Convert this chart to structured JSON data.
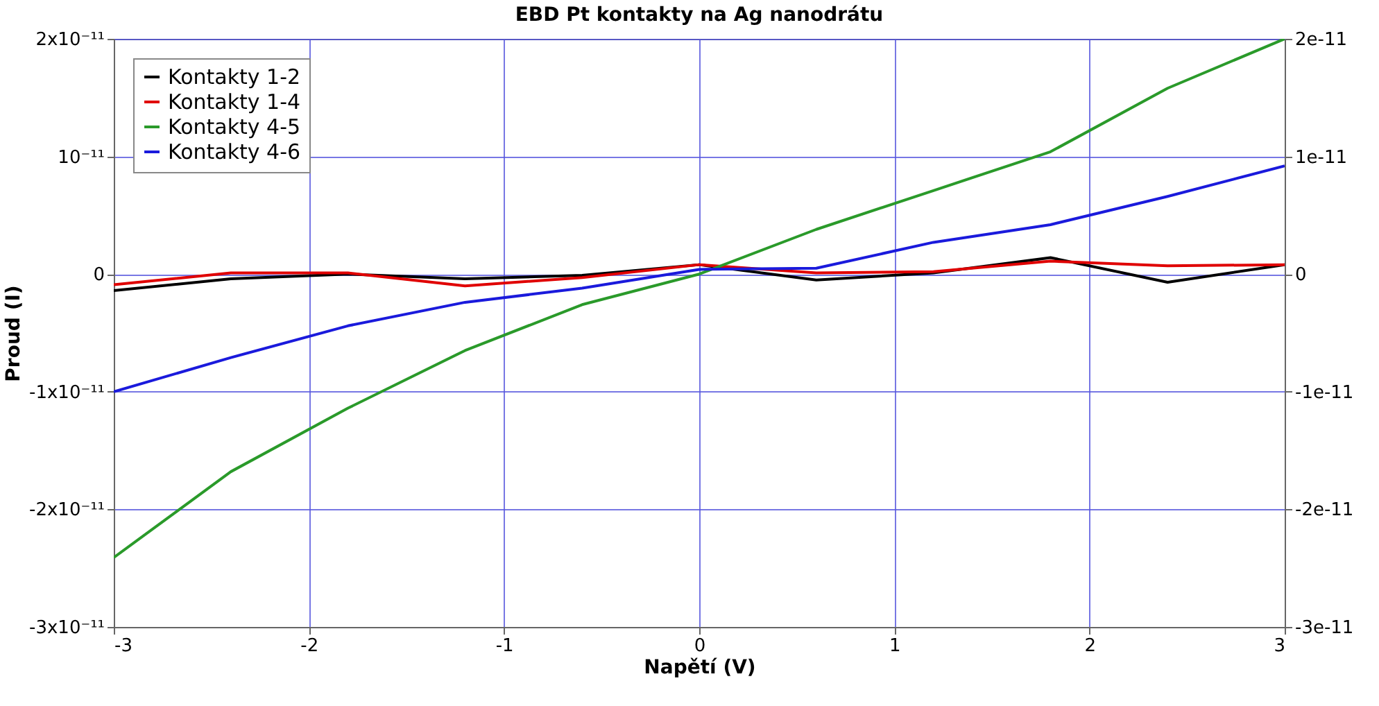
{
  "chart_data": {
    "type": "line",
    "title": "EBD Pt kontakty na Ag nanodrátu",
    "xlabel": "Napětí (V)",
    "ylabel": "Proud (I)",
    "x": [
      -3,
      -2.4,
      -1.8,
      -1.2,
      -0.6,
      0,
      0.6,
      1.2,
      1.8,
      2.4,
      3
    ],
    "series": [
      {
        "name": "Kontakty 1-2",
        "color": "#000000",
        "values": [
          -1.4e-12,
          -4e-13,
          0,
          -4e-13,
          -1e-13,
          8e-13,
          -5e-13,
          1e-13,
          1.4e-12,
          -7e-13,
          8e-13
        ]
      },
      {
        "name": "Kontakty 1-4",
        "color": "#e00000",
        "values": [
          -9e-13,
          1e-13,
          1e-13,
          -1e-12,
          -3e-13,
          8e-13,
          1e-13,
          2e-13,
          1.1e-12,
          7e-13,
          8e-13
        ]
      },
      {
        "name": "Kontakty 4-5",
        "color": "#2a9a2a",
        "values": [
          -2.41e-11,
          -1.68e-11,
          -1.14e-11,
          -6.5e-12,
          -2.6e-12,
          0,
          3.8e-12,
          7.1e-12,
          1.04e-11,
          1.58e-11,
          2e-11
        ]
      },
      {
        "name": "Kontakty 4-6",
        "color": "#1a1adc",
        "values": [
          -1e-11,
          -7.1e-12,
          -4.4e-12,
          -2.4e-12,
          -1.2e-12,
          4e-13,
          5e-13,
          2.7e-12,
          4.2e-12,
          6.6e-12,
          9.2e-12
        ]
      }
    ],
    "xlim": [
      -3,
      3
    ],
    "xticks": [
      -3,
      -2,
      -1,
      0,
      1,
      2,
      3
    ],
    "ylim": [
      -3e-11,
      2e-11
    ],
    "yticks": [
      {
        "value": -3e-11,
        "label": "-3x10⁻¹¹"
      },
      {
        "value": -2e-11,
        "label": "-2x10⁻¹¹"
      },
      {
        "value": -1e-11,
        "label": "-1x10⁻¹¹"
      },
      {
        "value": 0,
        "label": "0"
      },
      {
        "value": 1e-11,
        "label": "10⁻¹¹"
      },
      {
        "value": 2e-11,
        "label": "2x10⁻¹¹"
      }
    ],
    "y2lim": [
      -3e-11,
      2e-11
    ],
    "y2ticks": [
      {
        "value": -3e-11,
        "label": "-3e-11"
      },
      {
        "value": -2e-11,
        "label": "-2e-11"
      },
      {
        "value": -1e-11,
        "label": "-1e-11"
      },
      {
        "value": 0,
        "label": "0"
      },
      {
        "value": 1e-11,
        "label": "1e-11"
      },
      {
        "value": 2e-11,
        "label": "2e-11"
      }
    ],
    "grid": true,
    "legend": "top left",
    "marker": "none",
    "line_style": "solid"
  }
}
